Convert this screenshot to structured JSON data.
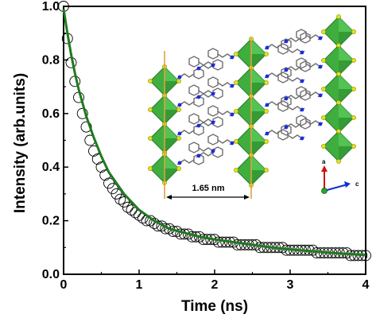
{
  "chart_data": {
    "type": "scatter",
    "xlabel": "Time (ns)",
    "ylabel": "Intensity (arb.units)",
    "xlim": [
      0,
      4
    ],
    "ylim": [
      0,
      1.0
    ],
    "x_ticks": [
      "0",
      "1",
      "2",
      "3",
      "4"
    ],
    "y_ticks": [
      "0.0",
      "0.2",
      "0.4",
      "0.6",
      "0.8",
      "1.0"
    ],
    "grid": false,
    "legend": "none",
    "series": [
      {
        "kind": "markers",
        "marker": "open-circle",
        "color": "#000000",
        "x": [
          0.0,
          0.05,
          0.1,
          0.15,
          0.2,
          0.25,
          0.3,
          0.35,
          0.4,
          0.45,
          0.5,
          0.55,
          0.6,
          0.65,
          0.7,
          0.75,
          0.8,
          0.85,
          0.9,
          0.95,
          1.0,
          1.05,
          1.1,
          1.15,
          1.2,
          1.25,
          1.3,
          1.35,
          1.4,
          1.45,
          1.5,
          1.55,
          1.6,
          1.65,
          1.7,
          1.75,
          1.8,
          1.85,
          1.9,
          1.95,
          2.0,
          2.05,
          2.1,
          2.15,
          2.2,
          2.25,
          2.3,
          2.35,
          2.4,
          2.45,
          2.5,
          2.55,
          2.6,
          2.65,
          2.7,
          2.75,
          2.8,
          2.85,
          2.9,
          2.95,
          3.0,
          3.05,
          3.1,
          3.15,
          3.2,
          3.25,
          3.3,
          3.35,
          3.4,
          3.45,
          3.5,
          3.55,
          3.6,
          3.65,
          3.7,
          3.75,
          3.8,
          3.85,
          3.9,
          3.95,
          4.0
        ],
        "y": [
          1.0,
          0.88,
          0.79,
          0.72,
          0.66,
          0.6,
          0.55,
          0.5,
          0.46,
          0.43,
          0.4,
          0.37,
          0.34,
          0.32,
          0.3,
          0.28,
          0.27,
          0.25,
          0.24,
          0.23,
          0.22,
          0.21,
          0.2,
          0.2,
          0.19,
          0.18,
          0.18,
          0.17,
          0.17,
          0.16,
          0.16,
          0.15,
          0.15,
          0.15,
          0.14,
          0.14,
          0.14,
          0.13,
          0.13,
          0.13,
          0.13,
          0.12,
          0.12,
          0.12,
          0.12,
          0.12,
          0.11,
          0.11,
          0.11,
          0.11,
          0.11,
          0.11,
          0.1,
          0.1,
          0.1,
          0.1,
          0.1,
          0.1,
          0.1,
          0.09,
          0.09,
          0.09,
          0.09,
          0.09,
          0.09,
          0.09,
          0.09,
          0.08,
          0.08,
          0.08,
          0.08,
          0.08,
          0.08,
          0.08,
          0.08,
          0.08,
          0.07,
          0.07,
          0.07,
          0.07,
          0.07
        ]
      },
      {
        "kind": "line",
        "color": "#1e7a1e",
        "x": [
          0.0,
          0.05,
          0.1,
          0.15,
          0.2,
          0.3,
          0.4,
          0.5,
          0.6,
          0.7,
          0.8,
          0.9,
          1.0,
          1.2,
          1.4,
          1.6,
          1.8,
          2.0,
          2.25,
          2.5,
          2.75,
          3.0,
          3.25,
          3.5,
          3.75,
          4.0
        ],
        "y": [
          0.99,
          0.9,
          0.82,
          0.75,
          0.69,
          0.59,
          0.51,
          0.44,
          0.38,
          0.34,
          0.3,
          0.27,
          0.24,
          0.2,
          0.17,
          0.155,
          0.14,
          0.13,
          0.12,
          0.11,
          0.1,
          0.093,
          0.087,
          0.081,
          0.076,
          0.072
        ]
      }
    ],
    "annotations": [
      "1.65 nm",
      "a",
      "c"
    ]
  },
  "colors": {
    "fit_line": "#1e7a1e",
    "octahedra": "#3fae3f",
    "bridge_atom": "#e3e317",
    "nitrogen": "#1a2fd6",
    "carbon": "#6e6e6e",
    "layer_line": "#e0a040",
    "axis_a": "#d01010",
    "axis_c": "#1030d0"
  }
}
